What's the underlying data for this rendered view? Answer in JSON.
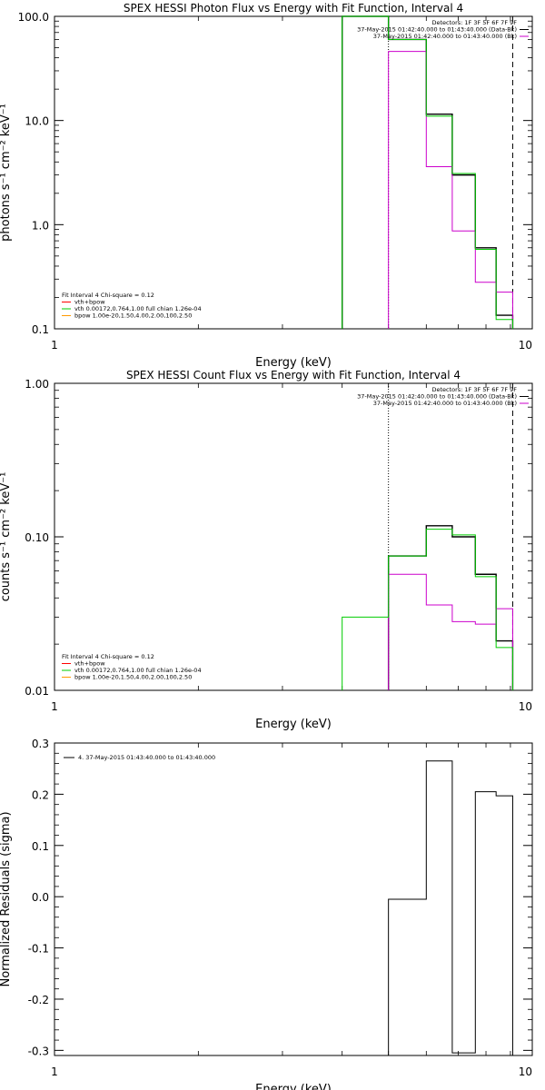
{
  "colors": {
    "data": "#000000",
    "background": "#cc00cc",
    "fit_total": "#ff0000",
    "vth": "#00cc00",
    "bpow": "#ff9900"
  },
  "chart_data": [
    {
      "type": "line",
      "scale": {
        "x": "log",
        "y": "log"
      },
      "title": "SPEX HESSI Photon Flux vs Energy with Fit Function, Interval 4",
      "xlabel": "Energy (keV)",
      "ylabel": "photons s⁻¹ cm⁻² keV⁻¹",
      "xlim": [
        1,
        10
      ],
      "ylim": [
        0.1,
        100
      ],
      "xticks": [
        {
          "v": 1,
          "label": "1"
        },
        {
          "v": 10,
          "label": "10"
        }
      ],
      "yticks": [
        {
          "v": 0.1,
          "label": "0.1"
        },
        {
          "v": 1,
          "label": "1.0"
        },
        {
          "v": 10,
          "label": "10.0"
        },
        {
          "v": 100,
          "label": "100.0"
        }
      ],
      "legend_top": [
        {
          "text": "Detectors: 1F 3F 5F 6F 7F 9F",
          "color": null
        },
        {
          "text": "37-May-2015 01:42:40.000 to 01:43:40.000 (Data-Bk)",
          "color": "#000000"
        },
        {
          "text": "37-May-2015 01:42:40.000 to 01:43:40.000 (Bk)",
          "color": "#cc00cc"
        }
      ],
      "legend_bottom": [
        {
          "text": "Fit Interval  4    Chi-square = 0.12",
          "color": null
        },
        {
          "text": "vth+bpow",
          "color": "#ff0000"
        },
        {
          "text": "vth 0.00172,0.764,1.00   full chian 1.26e-04",
          "color": "#00cc00"
        },
        {
          "text": "bpow 1.00e-20,1.50,4.00,2.00,100,2.50",
          "color": "#ff9900"
        }
      ],
      "vlines": [
        {
          "x": 5,
          "style": "dotted",
          "color": "#000000"
        },
        {
          "x": 9.1,
          "style": "dashed",
          "color": "#000000"
        }
      ],
      "series": [
        {
          "key": "data",
          "color": "#000000",
          "width": 1.4,
          "edges": [
            4,
            5,
            6,
            6.8,
            7.6,
            8.4,
            9.1
          ],
          "values": [
            100,
            60,
            11.5,
            3.0,
            0.6,
            0.135
          ]
        },
        {
          "key": "background",
          "color": "#cc00cc",
          "width": 1,
          "edges": [
            5,
            6,
            6.8,
            7.6,
            8.4,
            9.1
          ],
          "values": [
            46,
            3.6,
            0.87,
            0.28,
            0.225
          ]
        },
        {
          "key": "vth",
          "color": "#00cc00",
          "width": 1,
          "edges": [
            4,
            5,
            6,
            6.8,
            7.6,
            8.4,
            9.1
          ],
          "values": [
            100,
            60,
            11.0,
            3.1,
            0.58,
            0.123
          ]
        }
      ]
    },
    {
      "type": "line",
      "scale": {
        "x": "log",
        "y": "log"
      },
      "title": "SPEX HESSI Count Flux vs Energy with Fit Function, Interval 4",
      "xlabel": "Energy (keV)",
      "ylabel": "counts s⁻¹ cm⁻² keV⁻¹",
      "xlim": [
        1,
        10
      ],
      "ylim": [
        0.01,
        1
      ],
      "xticks": [
        {
          "v": 1,
          "label": "1"
        },
        {
          "v": 10,
          "label": "10"
        }
      ],
      "yticks": [
        {
          "v": 0.01,
          "label": "0.01"
        },
        {
          "v": 0.1,
          "label": "0.10"
        },
        {
          "v": 1,
          "label": "1.00"
        }
      ],
      "legend_top": [
        {
          "text": "Detectors: 1F 3F 5F 6F 7F 9F",
          "color": null
        },
        {
          "text": "37-May-2015 01:42:40.000 to 01:43:40.000 (Data-Bk)",
          "color": "#000000"
        },
        {
          "text": "37-May-2015 01:42:40.000 to 01:43:40.000 (Bk)",
          "color": "#cc00cc"
        }
      ],
      "legend_bottom": [
        {
          "text": "Fit Interval  4    Chi-square = 0.12",
          "color": null
        },
        {
          "text": "vth+bpow",
          "color": "#ff0000"
        },
        {
          "text": "vth 0.00172,0.764,1.00   full chian 1.26e-04",
          "color": "#00cc00"
        },
        {
          "text": "bpow 1.00e-20,1.50,4.00,2.00,100,2.50",
          "color": "#ff9900"
        }
      ],
      "vlines": [
        {
          "x": 5,
          "style": "dotted",
          "color": "#000000"
        },
        {
          "x": 9.1,
          "style": "dashed",
          "color": "#000000"
        }
      ],
      "series": [
        {
          "key": "data",
          "color": "#000000",
          "width": 1.4,
          "edges": [
            5,
            6,
            6.8,
            7.6,
            8.4,
            9.1
          ],
          "values": [
            0.075,
            0.118,
            0.1,
            0.057,
            0.021
          ]
        },
        {
          "key": "background",
          "color": "#cc00cc",
          "width": 1,
          "edges": [
            5,
            6,
            6.8,
            7.6,
            8.4,
            9.1
          ],
          "values": [
            0.057,
            0.036,
            0.028,
            0.027,
            0.034
          ]
        },
        {
          "key": "vth",
          "color": "#00cc00",
          "width": 1,
          "edges": [
            4,
            5,
            6,
            6.8,
            7.6,
            8.4,
            9.1
          ],
          "values": [
            0.03,
            0.075,
            0.112,
            0.103,
            0.055,
            0.019
          ]
        }
      ]
    },
    {
      "type": "line",
      "scale": {
        "x": "log",
        "y": "linear"
      },
      "title": "",
      "xlabel": "Energy (keV)",
      "ylabel": "Normalized Residuals (sigma)",
      "xlim": [
        1,
        10
      ],
      "ylim": [
        -0.31,
        0.3
      ],
      "xticks": [
        {
          "v": 1,
          "label": "1"
        },
        {
          "v": 10,
          "label": "10"
        }
      ],
      "yticks": [
        {
          "v": -0.3,
          "label": "-0.3"
        },
        {
          "v": -0.2,
          "label": "-0.2"
        },
        {
          "v": -0.1,
          "label": "-0.1"
        },
        {
          "v": 0,
          "label": "0.0"
        },
        {
          "v": 0.1,
          "label": "0.1"
        },
        {
          "v": 0.2,
          "label": "0.2"
        },
        {
          "v": 0.3,
          "label": "0.3"
        }
      ],
      "legend_top": [],
      "legend_bottom": [],
      "legend_inset": {
        "text": "4. 37-May-2015 01:43:40.000 to 01:43:40.000",
        "color": "#000000"
      },
      "vlines": [],
      "series": [
        {
          "key": "residuals",
          "color": "#000000",
          "width": 1,
          "edges": [
            5,
            6,
            6.8,
            7.6,
            8.4,
            9.1
          ],
          "values": [
            -0.005,
            0.265,
            -0.305,
            0.205,
            0.197
          ]
        }
      ]
    }
  ]
}
